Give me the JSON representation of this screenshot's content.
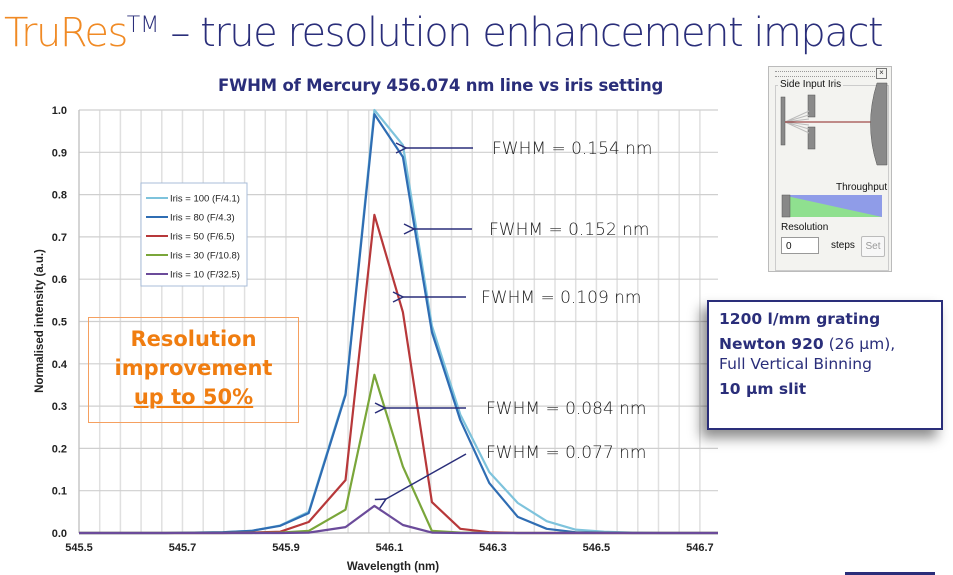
{
  "slide": {
    "title_brand": "TruRes",
    "title_brand_sup": "TM",
    "title_rest": " – true resolution enhancement impact"
  },
  "annotations": {
    "resolution_line1": "Resolution",
    "resolution_line2": "improvement",
    "resolution_line3": "up to 50%",
    "fwhm": [
      "FWHM = 0.154 nm",
      "FWHM = 0.152 nm",
      "FWHM = 0.109 nm",
      "FWHM = 0.084 nm",
      "FWHM = 0.077 nm"
    ]
  },
  "info_box": {
    "grating": "1200 l/mm grating",
    "camera_bold": "Newton 920",
    "camera_rest": " (26 µm),",
    "binning": "Full Vertical Binning",
    "slit": "10 µm slit"
  },
  "iris_panel": {
    "group_label": "Side Input Iris",
    "throughput_label": "Throughput",
    "resolution_label": "Resolution",
    "steps_value": "0",
    "steps_label": "steps",
    "set_button": "Set",
    "close_icon": "close-icon"
  },
  "chart_data": {
    "type": "line",
    "title": "FWHM of Mercury 456.074 nm line vs iris setting",
    "xlabel": "Wavelength (nm)",
    "ylabel": "Normalised intensity (a.u.)",
    "xlim": [
      545.5,
      546.735
    ],
    "ylim": [
      0.0,
      1.0
    ],
    "xticks": [
      "545.5",
      "545.7",
      "545.9",
      "546.1",
      "546.3",
      "546.5",
      "546.7"
    ],
    "xtick_values": [
      545.5,
      545.7,
      545.9,
      546.1,
      546.3,
      546.5,
      546.7
    ],
    "yticks": [
      "0.0",
      "0.1",
      "0.2",
      "0.3",
      "0.4",
      "0.5",
      "0.6",
      "0.7",
      "0.8",
      "0.9",
      "1.0"
    ],
    "grid": true,
    "legend_position": "upper-left",
    "x": [
      545.5,
      545.556,
      545.611,
      545.667,
      545.722,
      545.778,
      545.833,
      545.889,
      545.944,
      546.0,
      546.015,
      546.071,
      546.126,
      546.182,
      546.237,
      546.293,
      546.348,
      546.404,
      546.459,
      546.515,
      546.57,
      546.626,
      546.681,
      546.735
    ],
    "series": [
      {
        "name": "Iris = 100 (F/4.1)",
        "color": "#7ec3dc",
        "values": [
          0.0,
          0.0,
          0.0,
          0.0,
          0.001,
          0.002,
          0.005,
          0.018,
          0.05,
          null,
          0.33,
          1.0,
          0.917,
          0.49,
          0.28,
          0.144,
          0.071,
          0.028,
          0.008,
          0.003,
          0.001,
          0.0,
          0.0,
          0.0
        ]
      },
      {
        "name": "Iris = 80 (F/4.3)",
        "color": "#2f6db3",
        "values": [
          0.0,
          0.0,
          0.0,
          0.0,
          0.001,
          0.002,
          0.005,
          0.017,
          0.047,
          null,
          0.326,
          0.99,
          0.889,
          0.475,
          0.267,
          0.118,
          0.038,
          0.01,
          0.002,
          0.001,
          0.0,
          0.0,
          0.0,
          0.0
        ]
      },
      {
        "name": "Iris = 50 (F/6.5)",
        "color": "#b7383a",
        "values": [
          0.0,
          0.0,
          0.0,
          0.0,
          0.0,
          0.0,
          0.001,
          0.003,
          0.026,
          null,
          0.125,
          0.752,
          0.522,
          0.073,
          0.01,
          0.002,
          0.0,
          0.0,
          0.0,
          0.0,
          0.0,
          0.0,
          0.0,
          0.0
        ]
      },
      {
        "name": "Iris = 30 (F/10.8)",
        "color": "#7aa63a",
        "values": [
          0.0,
          0.0,
          0.0,
          0.0,
          0.0,
          0.0,
          0.0,
          0.001,
          0.005,
          null,
          0.055,
          0.374,
          0.157,
          0.005,
          0.001,
          0.0,
          0.0,
          0.0,
          0.0,
          0.0,
          0.0,
          0.0,
          0.0,
          0.0
        ]
      },
      {
        "name": "Iris = 10 (F/32.5)",
        "color": "#6b4b9a",
        "values": [
          0.0,
          0.0,
          0.0,
          0.0,
          0.0,
          0.0,
          0.0,
          0.0,
          0.001,
          null,
          0.014,
          0.064,
          0.019,
          0.001,
          0.0,
          0.0,
          0.0,
          0.0,
          0.0,
          0.0,
          0.0,
          0.0,
          0.0,
          0.0
        ]
      }
    ],
    "annotation_targets": [
      {
        "label_index": 0,
        "x": 546.133,
        "y": 0.912
      },
      {
        "label_index": 1,
        "x": 546.148,
        "y": 0.72
      },
      {
        "label_index": 2,
        "x": 546.13,
        "y": 0.56
      },
      {
        "label_index": 3,
        "x": 546.09,
        "y": 0.296
      },
      {
        "label_index": 4,
        "x": 546.09,
        "y": 0.078
      }
    ]
  },
  "colors": {
    "brand_orange": "#f08a24",
    "navy": "#2a2e7a",
    "grid": "#d9d9d9",
    "arrow": "#2a2e7a"
  }
}
